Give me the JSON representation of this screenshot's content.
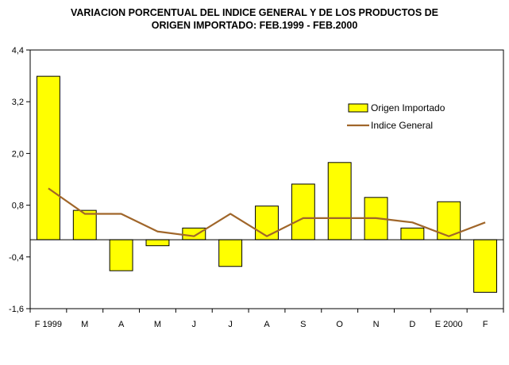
{
  "chart_data": {
    "type": "bar+line",
    "title_line1": "VARIACION PORCENTUAL DEL INDICE GENERAL Y DE LOS PRODUCTOS DE",
    "title_line2": "ORIGEN IMPORTADO: FEB.1999 - FEB.2000",
    "categories": [
      "F 1999",
      "M",
      "A",
      "M",
      "J",
      "J",
      "A",
      "S",
      "O",
      "N",
      "D",
      "E 2000",
      "F"
    ],
    "ylim": [
      -1.6,
      4.4
    ],
    "yticks": [
      "4,4",
      "3,2",
      "2,0",
      "0,8",
      "-0,4",
      "-1,6"
    ],
    "ytick_values": [
      4.4,
      3.2,
      2.0,
      0.8,
      -0.4,
      -1.6
    ],
    "grid": false,
    "legend_position": "right",
    "series": [
      {
        "name": "Origen Importado",
        "kind": "bar",
        "color": "#ffff00",
        "values": [
          3.79,
          0.68,
          -0.72,
          -0.14,
          0.27,
          -0.62,
          0.78,
          1.29,
          1.79,
          0.98,
          0.27,
          0.88,
          -1.22
        ]
      },
      {
        "name": "Indice General",
        "kind": "line",
        "color": "#a0662a",
        "values": [
          1.19,
          0.6,
          0.6,
          0.19,
          0.08,
          0.6,
          0.08,
          0.5,
          0.5,
          0.5,
          0.4,
          0.08,
          0.4
        ]
      }
    ]
  }
}
